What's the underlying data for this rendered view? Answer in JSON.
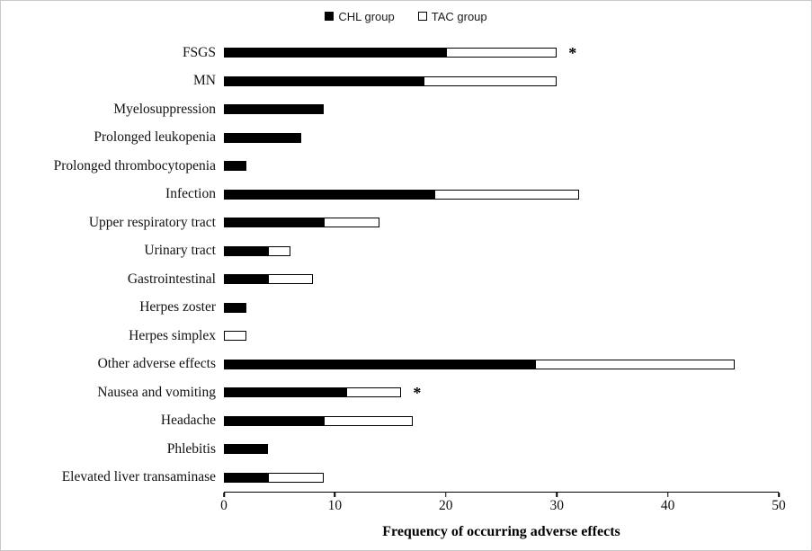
{
  "chart_data": {
    "type": "bar",
    "orientation": "horizontal",
    "stacked": true,
    "title": "",
    "xlabel": "Frequency of occurring adverse effects",
    "xlim": [
      0,
      50
    ],
    "x_ticks": [
      0,
      10,
      20,
      30,
      40,
      50
    ],
    "grid": false,
    "legend_position": "top-center",
    "categories": [
      "FSGS",
      "MN",
      "Myelosuppression",
      "Prolonged leukopenia",
      "Prolonged thrombocytopenia",
      "Infection",
      "Upper respiratory tract",
      "Urinary tract",
      "Gastrointestinal",
      "Herpes zoster",
      "Herpes simplex",
      "Other adverse effects",
      "Nausea and vomiting",
      "Headache",
      "Phlebitis",
      "Elevated liver transaminase"
    ],
    "series": [
      {
        "name": "CHL group",
        "fill": "#000000",
        "border": "#000000",
        "values": [
          20,
          18,
          9,
          7,
          2,
          19,
          9,
          4,
          4,
          2,
          0,
          28,
          11,
          9,
          4,
          4
        ]
      },
      {
        "name": "TAC group",
        "fill": "#ffffff",
        "border": "#000000",
        "values": [
          10,
          12,
          0,
          0,
          0,
          13,
          5,
          2,
          4,
          0,
          2,
          18,
          5,
          8,
          0,
          5
        ]
      }
    ],
    "annotations": [
      {
        "category": "FSGS",
        "text": "*"
      },
      {
        "category": "Nausea and vomiting",
        "text": "*"
      }
    ]
  }
}
